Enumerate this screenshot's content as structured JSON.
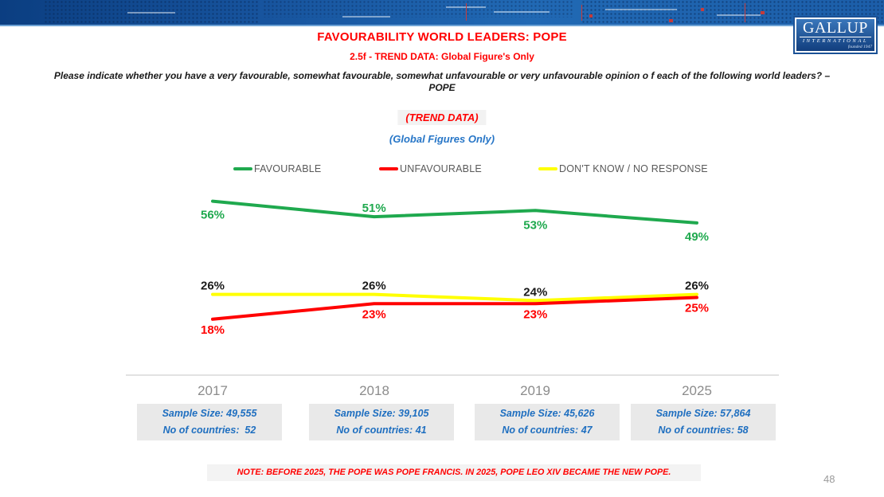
{
  "header": {
    "logo": {
      "name": "GALLUP",
      "subtitle": "INTERNATIONAL",
      "tagline": "founded 1947"
    }
  },
  "title": "FAVOURABILITY WORLD LEADERS: POPE",
  "subtitle": "2.5f - TREND DATA: Global Figure's Only",
  "question": {
    "line1": "Please indicate whether you have a very favourable, somewhat favourable, somewhat unfavourable or very unfavourable opinion o f each of the following world leaders? –",
    "line2": "POPE"
  },
  "trend_tag": "(TREND DATA)",
  "global_tag": "(Global Figures Only)",
  "chart_data": {
    "type": "line",
    "title": "FAVOURABILITY WORLD LEADERS: POPE — TREND DATA (Global Figures Only)",
    "categories": [
      "2017",
      "2018",
      "2019",
      "2025"
    ],
    "series": [
      {
        "name": "FAVOURABLE",
        "color": "#1fa94e",
        "label_color": "#1fa94e",
        "values": [
          56,
          51,
          53,
          49
        ]
      },
      {
        "name": "DON'T KNOW / NO RESPONSE",
        "color": "#ffff00",
        "label_color": "#1a1a1a",
        "values": [
          26,
          26,
          24,
          26
        ]
      },
      {
        "name": "UNFAVOURABLE",
        "color": "#ff0000",
        "label_color": "#ff0000",
        "values": [
          18,
          23,
          23,
          25
        ]
      }
    ],
    "value_suffix": "%",
    "ylim": [
      0,
      62
    ],
    "grid": false,
    "legend_position": "top",
    "xlabel": "",
    "ylabel": ""
  },
  "footnotes": {
    "samples": [
      {
        "year": "2017",
        "sample": "Sample Size: 49,555",
        "countries": "No of countries:  52"
      },
      {
        "year": "2018",
        "sample": "Sample Size: 39,105",
        "countries": "No of countries: 41"
      },
      {
        "year": "2019",
        "sample": "Sample Size: 45,626",
        "countries": "No of countries: 47"
      },
      {
        "year": "2025",
        "sample": "Sample Size: 57,864",
        "countries": "No of countries: 58"
      }
    ]
  },
  "note": "NOTE: BEFORE 2025, THE POPE WAS POPE FRANCIS. IN 2025, POPE LEO XIV BECAME THE NEW POPE.",
  "page_number": "48"
}
